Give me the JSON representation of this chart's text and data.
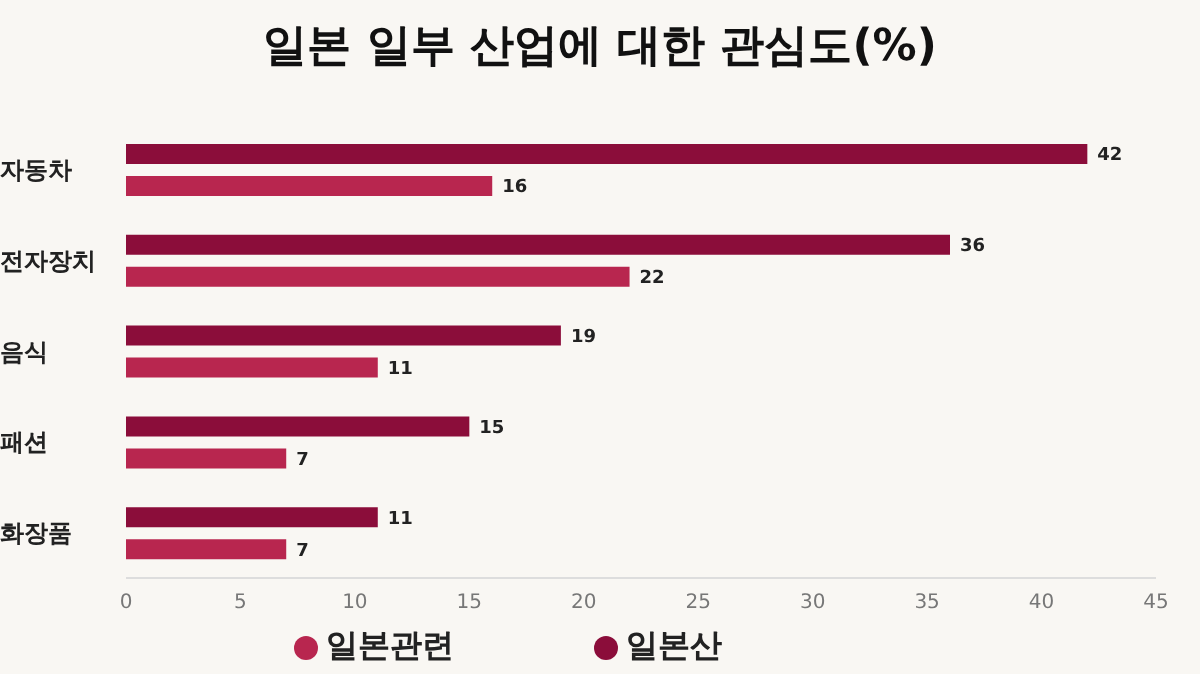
{
  "chart_data": {
    "type": "bar",
    "orientation": "horizontal",
    "title": "일본 일부 산업에 대한 관심도(%)",
    "categories": [
      "자동차",
      "전자장치",
      "음식",
      "패션",
      "화장품"
    ],
    "series": [
      {
        "name": "일본산",
        "color": "#8b0d3a",
        "values": [
          42,
          36,
          19,
          15,
          11
        ]
      },
      {
        "name": "일본관련",
        "color": "#b8264f",
        "values": [
          16,
          22,
          11,
          7,
          7
        ]
      }
    ],
    "xlim": [
      0,
      45
    ],
    "xticks": [
      0,
      5,
      10,
      15,
      20,
      25,
      30,
      35,
      40,
      45
    ],
    "data_labels": true,
    "legend": "bottom",
    "grid": false
  }
}
